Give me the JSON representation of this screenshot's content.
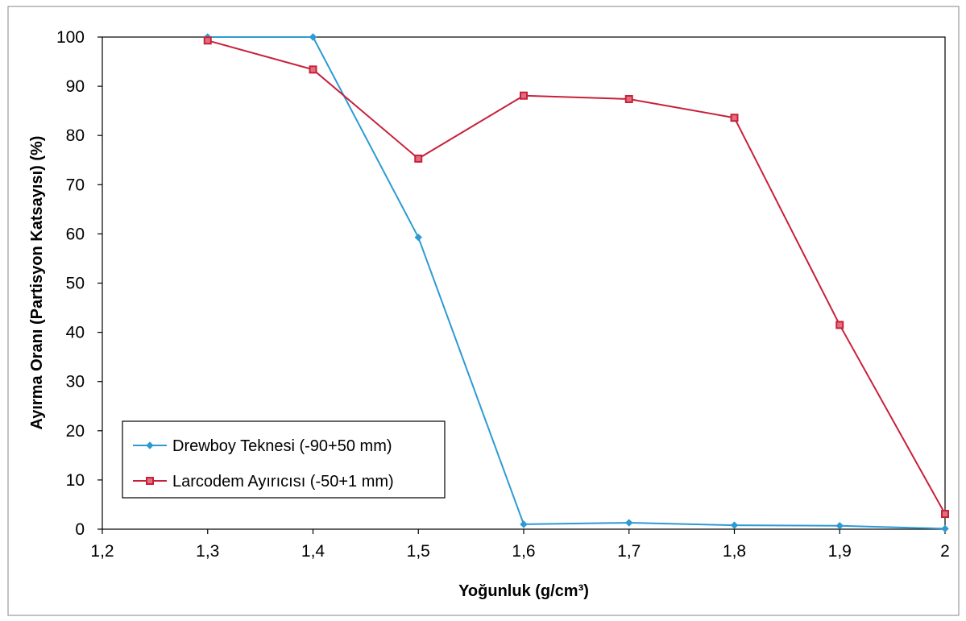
{
  "chart_data": {
    "type": "line",
    "x": [
      1.3,
      1.4,
      1.5,
      1.6,
      1.7,
      1.8,
      1.9,
      2.0
    ],
    "series": [
      {
        "name": "Drewboy Teknesi (-90+50 mm)",
        "values": [
          100,
          100,
          59.3,
          1.0,
          1.3,
          0.8,
          0.7,
          0.1
        ],
        "color": "#2E9AD3",
        "marker": "diamond"
      },
      {
        "name": "Larcodem Ayırıcısı (-50+1 mm)",
        "values": [
          99.3,
          93.4,
          75.3,
          88.1,
          87.4,
          83.6,
          41.5,
          3.1
        ],
        "color": "#C8203A",
        "marker": "square"
      }
    ],
    "xlabel": "Yoğunluk (g/cm³)",
    "ylabel": "Ayırma Oranı (Partisyon Katsayısı) (%)",
    "xlim": [
      1.2,
      2.0
    ],
    "ylim": [
      0,
      100
    ],
    "x_tick_values": [
      1.2,
      1.3,
      1.4,
      1.5,
      1.6,
      1.7,
      1.8,
      1.9,
      2.0
    ],
    "x_tick_labels": [
      "1,2",
      "1,3",
      "1,4",
      "1,5",
      "1,6",
      "1,7",
      "1,8",
      "1,9",
      "2"
    ],
    "y_tick_values": [
      0,
      10,
      20,
      30,
      40,
      50,
      60,
      70,
      80,
      90,
      100
    ],
    "y_tick_labels": [
      "0",
      "10",
      "20",
      "30",
      "40",
      "50",
      "60",
      "70",
      "80",
      "90",
      "100"
    ],
    "grid": false,
    "legend_position": "bottom-left"
  }
}
